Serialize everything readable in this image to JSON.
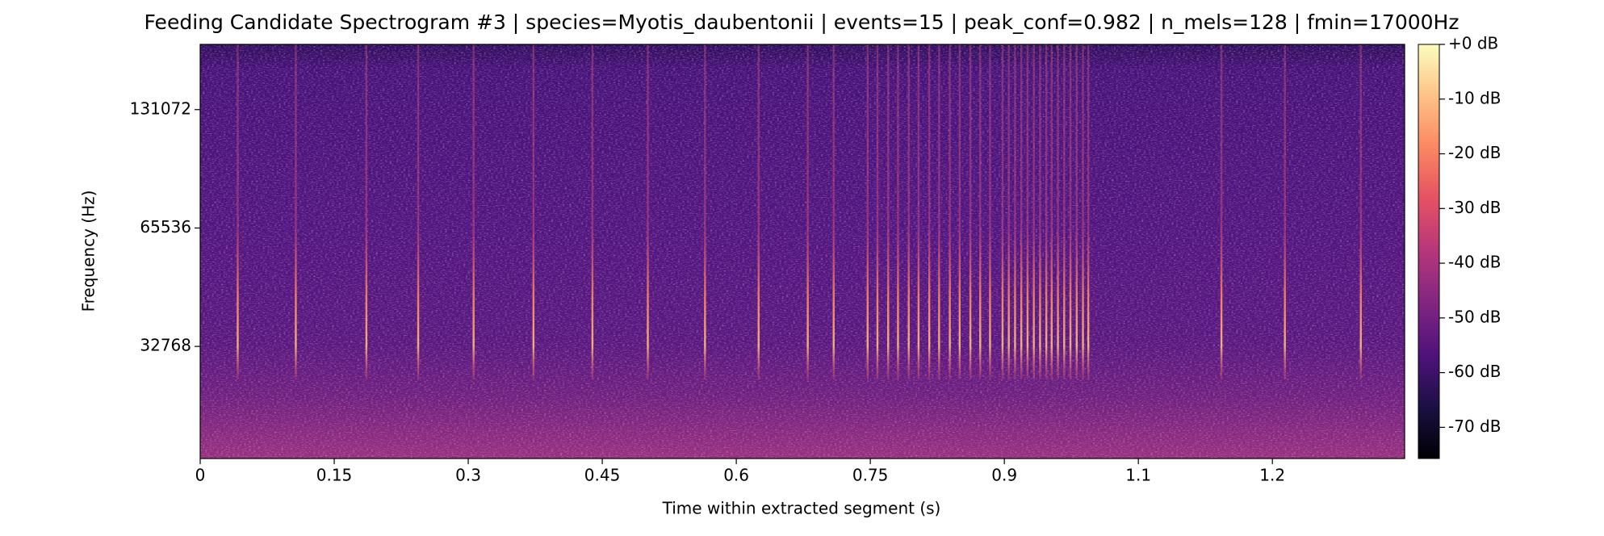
{
  "chart_data": {
    "type": "spectrogram",
    "title": "Feeding Candidate Spectrogram #3 | species=Myotis_daubentonii | events=15 | peak_conf=0.982 | n_mels=128 | fmin=17000Hz",
    "x_label": "Time within extracted segment (s)",
    "y_label": "Frequency (Hz)",
    "xlim": [
      0,
      1.348
    ],
    "xticks": [
      0,
      0.15,
      0.3,
      0.45,
      0.6,
      0.75,
      0.9,
      {
        "value": 1.05,
        "label": "1.1"
      },
      1.2
    ],
    "ylim": [
      17000,
      192000
    ],
    "y_scale": "log",
    "yticks": [
      32768,
      65536,
      131072
    ],
    "clim": [
      -75.7,
      0
    ],
    "cticks": [
      {
        "value": 0,
        "label": "+0 dB"
      },
      {
        "value": -10,
        "label": "-10 dB"
      },
      {
        "value": -20,
        "label": "-20 dB"
      },
      {
        "value": -30,
        "label": "-30 dB"
      },
      {
        "value": -40,
        "label": "-40 dB"
      },
      {
        "value": -50,
        "label": "-50 dB"
      },
      {
        "value": -60,
        "label": "-60 dB"
      },
      {
        "value": -70,
        "label": "-70 dB"
      }
    ],
    "colormap": [
      "#000004",
      "#1c1044",
      "#4f127b",
      "#812581",
      "#b5367a",
      "#e55064",
      "#fb8761",
      "#fec287",
      "#fcfdbf"
    ],
    "x": [
      0.042,
      0.107,
      0.186,
      0.244,
      0.306,
      0.373,
      0.439,
      0.501,
      0.565,
      0.625,
      0.68,
      0.709,
      0.747,
      0.758,
      0.77,
      0.781,
      0.793,
      0.804,
      0.816,
      0.827,
      0.839,
      0.85,
      0.862,
      0.873,
      0.884,
      0.898,
      0.905,
      0.912,
      0.919,
      0.926,
      0.933,
      0.94,
      0.947,
      0.953,
      0.96,
      0.967,
      0.974,
      0.981,
      0.988,
      0.994,
      1.143,
      1.214,
      1.299
    ]
  }
}
